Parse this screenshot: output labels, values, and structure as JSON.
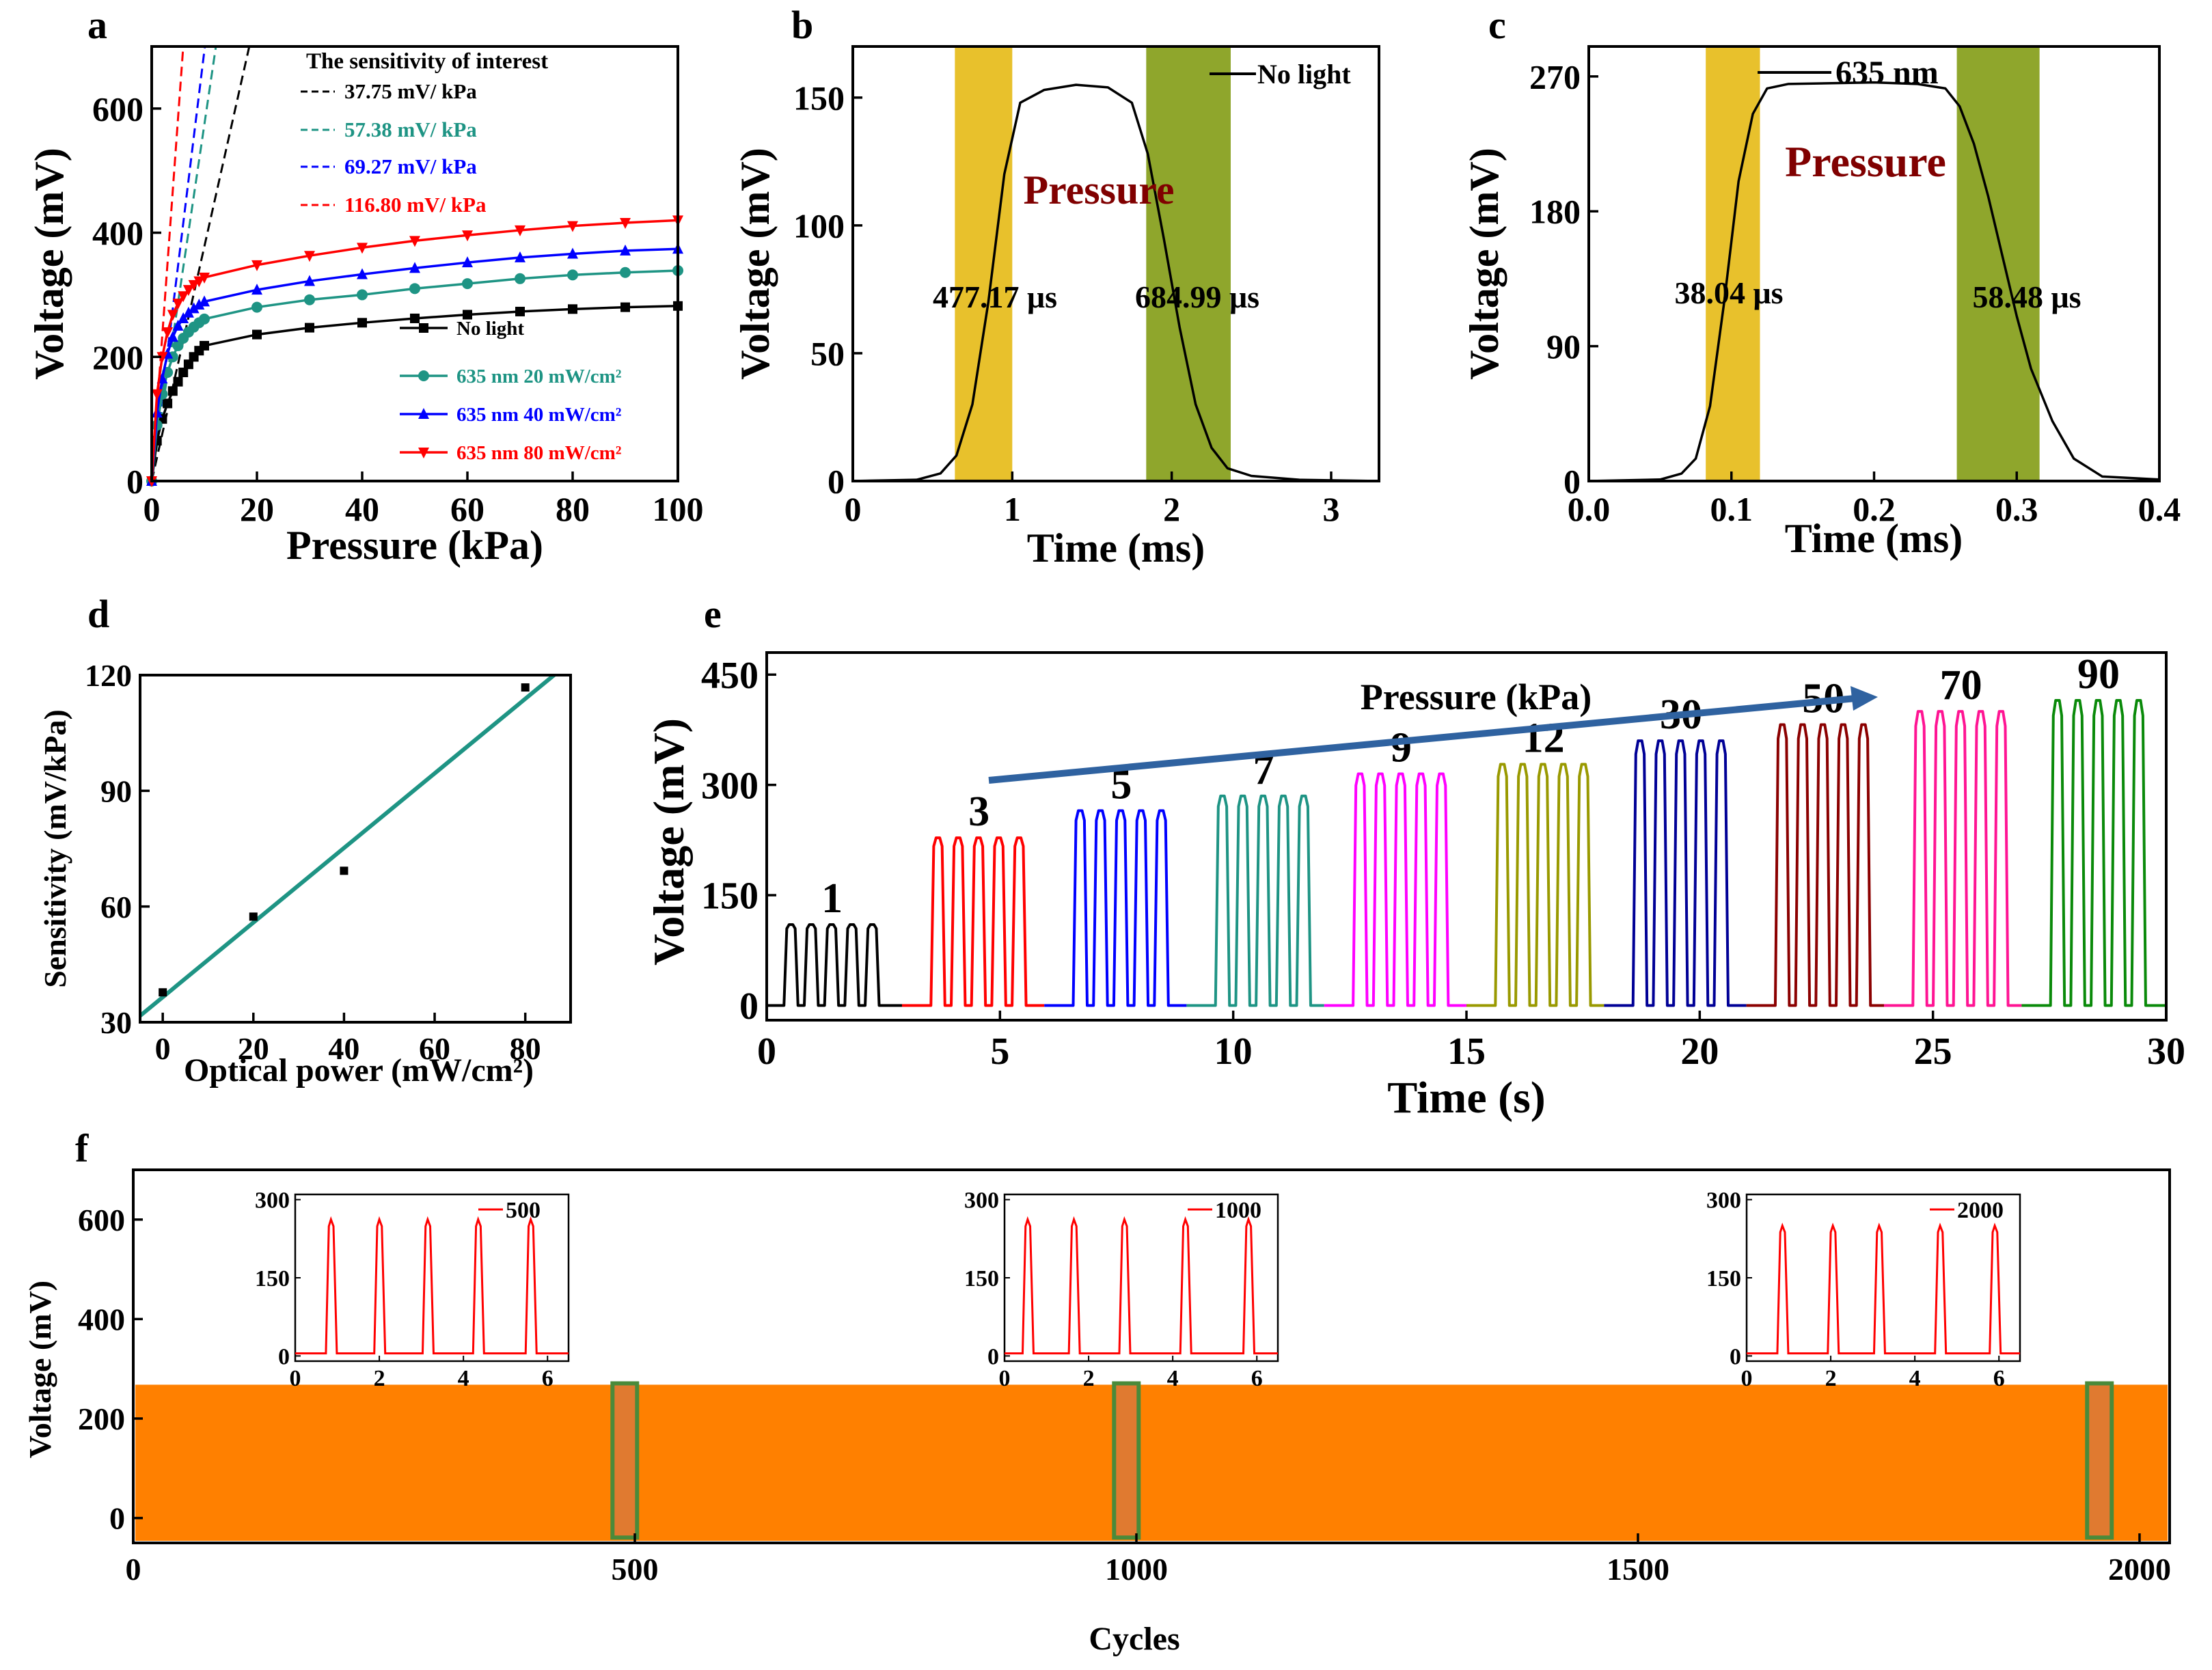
{
  "panels": {
    "a": "a",
    "b": "b",
    "c": "c",
    "d": "d",
    "e": "e",
    "f": "f"
  },
  "chart_data": [
    {
      "id": "a",
      "type": "line",
      "xlabel": "Pressure (kPa)",
      "ylabel": "Voltage (mV)",
      "xlim": [
        0,
        100
      ],
      "ylim": [
        0,
        700
      ],
      "xticks": [
        0,
        20,
        40,
        60,
        80,
        100
      ],
      "yticks": [
        0,
        200,
        400,
        600
      ],
      "series": [
        {
          "name": "No light",
          "color": "#000000",
          "marker": "square",
          "x": [
            0,
            1,
            2,
            3,
            4,
            5,
            6,
            7,
            8,
            9,
            10,
            20,
            30,
            40,
            50,
            60,
            70,
            80,
            90,
            100
          ],
          "y": [
            0,
            65,
            100,
            125,
            145,
            160,
            175,
            188,
            200,
            210,
            218,
            236,
            247,
            255,
            262,
            268,
            273,
            277,
            280,
            282
          ]
        },
        {
          "name": "635 nm 20 mW/cm²",
          "color": "#1e9484",
          "marker": "circle",
          "x": [
            0,
            1,
            2,
            3,
            4,
            5,
            6,
            7,
            8,
            9,
            10,
            20,
            30,
            40,
            50,
            60,
            70,
            80,
            90,
            100
          ],
          "y": [
            0,
            90,
            140,
            175,
            200,
            218,
            230,
            240,
            248,
            255,
            261,
            280,
            292,
            300,
            310,
            318,
            326,
            332,
            336,
            339
          ]
        },
        {
          "name": "635 nm 40 mW/cm²",
          "color": "#0000ff",
          "marker": "triangle-up",
          "x": [
            0,
            1,
            2,
            3,
            4,
            5,
            6,
            7,
            8,
            9,
            10,
            20,
            30,
            40,
            50,
            60,
            70,
            80,
            90,
            100
          ],
          "y": [
            0,
            110,
            165,
            205,
            232,
            250,
            262,
            271,
            278,
            284,
            289,
            308,
            322,
            333,
            343,
            352,
            360,
            366,
            371,
            374
          ]
        },
        {
          "name": "635 nm 80 mW/cm²",
          "color": "#ff0000",
          "marker": "triangle-down",
          "x": [
            0,
            1,
            2,
            3,
            4,
            5,
            6,
            7,
            8,
            9,
            10,
            20,
            30,
            40,
            50,
            60,
            70,
            80,
            90,
            100
          ],
          "y": [
            0,
            140,
            200,
            240,
            268,
            286,
            298,
            308,
            316,
            322,
            328,
            348,
            363,
            376,
            387,
            396,
            404,
            411,
            416,
            420
          ]
        }
      ],
      "sensitivity_lines": [
        {
          "label": "37.75 mV/ kPa",
          "slope": 37.75,
          "color": "#000000"
        },
        {
          "label": "57.38 mV/ kPa",
          "slope": 57.38,
          "color": "#1e9484"
        },
        {
          "label": "69.27 mV/ kPa",
          "slope": 69.27,
          "color": "#0000ff"
        },
        {
          "label": "116.80 mV/ kPa",
          "slope": 116.8,
          "color": "#ff0000"
        }
      ],
      "sensitivity_title": "The sensitivity of interest"
    },
    {
      "id": "b",
      "type": "line",
      "xlabel": "Time (ms)",
      "ylabel": "Voltage (mV)",
      "xlim": [
        0,
        3.3
      ],
      "ylim": [
        0,
        170
      ],
      "xticks": [
        0,
        1,
        2,
        3
      ],
      "yticks": [
        0,
        50,
        100,
        150
      ],
      "series": [
        {
          "name": "No light",
          "color": "#000000",
          "x": [
            0,
            0.4,
            0.55,
            0.65,
            0.75,
            0.85,
            0.95,
            1.05,
            1.2,
            1.4,
            1.6,
            1.75,
            1.85,
            1.95,
            2.05,
            2.15,
            2.25,
            2.35,
            2.5,
            2.8,
            3.3
          ],
          "y": [
            0,
            0.5,
            3,
            10,
            30,
            70,
            120,
            148,
            153,
            155,
            154,
            148,
            128,
            95,
            60,
            30,
            13,
            5,
            2,
            0.5,
            0
          ]
        }
      ],
      "bands": [
        {
          "from": 0.64,
          "to": 1.0,
          "color": "#e8c12c"
        },
        {
          "from": 1.84,
          "to": 2.37,
          "color": "#8fa62c"
        }
      ],
      "annotations": [
        "477.17 μs",
        "684.99 μs"
      ],
      "band_label": "Pressure"
    },
    {
      "id": "c",
      "type": "line",
      "xlabel": "Time (ms)",
      "ylabel": "Voltage (mV)",
      "xlim": [
        0,
        0.4
      ],
      "ylim": [
        0,
        290
      ],
      "xticks": [
        0.0,
        0.1,
        0.2,
        0.3,
        0.4
      ],
      "yticks": [
        0,
        90,
        180,
        270
      ],
      "series": [
        {
          "name": "635 nm",
          "color": "#000000",
          "x": [
            0,
            0.05,
            0.065,
            0.075,
            0.085,
            0.095,
            0.105,
            0.115,
            0.125,
            0.14,
            0.2,
            0.23,
            0.25,
            0.26,
            0.27,
            0.28,
            0.29,
            0.3,
            0.31,
            0.325,
            0.34,
            0.36,
            0.4
          ],
          "y": [
            0,
            1,
            5,
            15,
            50,
            120,
            200,
            245,
            262,
            265,
            266,
            265,
            262,
            250,
            225,
            190,
            150,
            110,
            75,
            40,
            15,
            3,
            1
          ]
        }
      ],
      "bands": [
        {
          "from": 0.082,
          "to": 0.12,
          "color": "#e8c12c"
        },
        {
          "from": 0.258,
          "to": 0.316,
          "color": "#8fa62c"
        }
      ],
      "annotations": [
        "38.04 μs",
        "58.48 μs"
      ],
      "band_label": "Pressure"
    },
    {
      "id": "d",
      "type": "scatter",
      "xlabel": "Optical power (mW/cm²)",
      "ylabel": "Sensitivity (mV/kPa)",
      "xlim": [
        -5,
        90
      ],
      "ylim": [
        30,
        120
      ],
      "xticks": [
        0,
        20,
        40,
        60,
        80
      ],
      "yticks": [
        30,
        60,
        90,
        120
      ],
      "points": {
        "x": [
          0,
          20,
          40,
          80
        ],
        "y": [
          37.75,
          57.38,
          69.27,
          116.8
        ]
      },
      "fit": {
        "slope": 0.967,
        "intercept": 36.5,
        "color": "#1e9484"
      }
    },
    {
      "id": "e",
      "type": "line",
      "xlabel": "Time (s)",
      "ylabel": "Voltage (mV)",
      "xlim": [
        0,
        30
      ],
      "ylim": [
        -20,
        480
      ],
      "xticks": [
        0,
        5,
        10,
        15,
        20,
        25,
        30
      ],
      "yticks": [
        0,
        150,
        300,
        450
      ],
      "arrow_label": "Pressure (kPa)",
      "groups": [
        {
          "label": "1",
          "color": "#000000",
          "start": 0.35,
          "peak": 110
        },
        {
          "label": "3",
          "color": "#ff0000",
          "start": 3.5,
          "peak": 228
        },
        {
          "label": "5",
          "color": "#0000ff",
          "start": 6.55,
          "peak": 265
        },
        {
          "label": "7",
          "color": "#1e9484",
          "start": 9.6,
          "peak": 285
        },
        {
          "label": "9",
          "color": "#ff00ff",
          "start": 12.55,
          "peak": 315
        },
        {
          "label": "12",
          "color": "#999900",
          "start": 15.6,
          "peak": 328
        },
        {
          "label": "30",
          "color": "#000096",
          "start": 18.55,
          "peak": 360
        },
        {
          "label": "50",
          "color": "#8b0000",
          "start": 21.6,
          "peak": 382
        },
        {
          "label": "70",
          "color": "#ff1493",
          "start": 24.55,
          "peak": 400
        },
        {
          "label": "90",
          "color": "#0a8a0a",
          "start": 27.5,
          "peak": 415
        }
      ]
    },
    {
      "id": "f",
      "type": "area",
      "xlabel": "Cycles",
      "ylabel": "Voltage (mV)",
      "xlim": [
        0,
        2030
      ],
      "ylim": [
        -50,
        700
      ],
      "xticks": [
        0,
        500,
        1000,
        1500,
        2000
      ],
      "yticks": [
        0,
        200,
        400,
        600
      ],
      "fill_color": "#ff8000",
      "max_level": 268,
      "highlight_boxes": [
        490,
        990,
        1960
      ],
      "insets": [
        {
          "label": "500",
          "peaks": [
            0.85,
            2.0,
            3.15,
            4.35,
            5.6
          ],
          "peak_value": 262
        },
        {
          "label": "1000",
          "peaks": [
            0.55,
            1.65,
            2.85,
            4.3,
            5.8
          ],
          "peak_value": 262
        },
        {
          "label": "2000",
          "peaks": [
            0.85,
            2.05,
            3.15,
            4.6,
            5.9
          ],
          "peak_value": 250
        }
      ],
      "inset_xticks": [
        0,
        2,
        4,
        6
      ],
      "inset_yticks": [
        0,
        150,
        300
      ],
      "inset_color": "#ff0000"
    }
  ]
}
